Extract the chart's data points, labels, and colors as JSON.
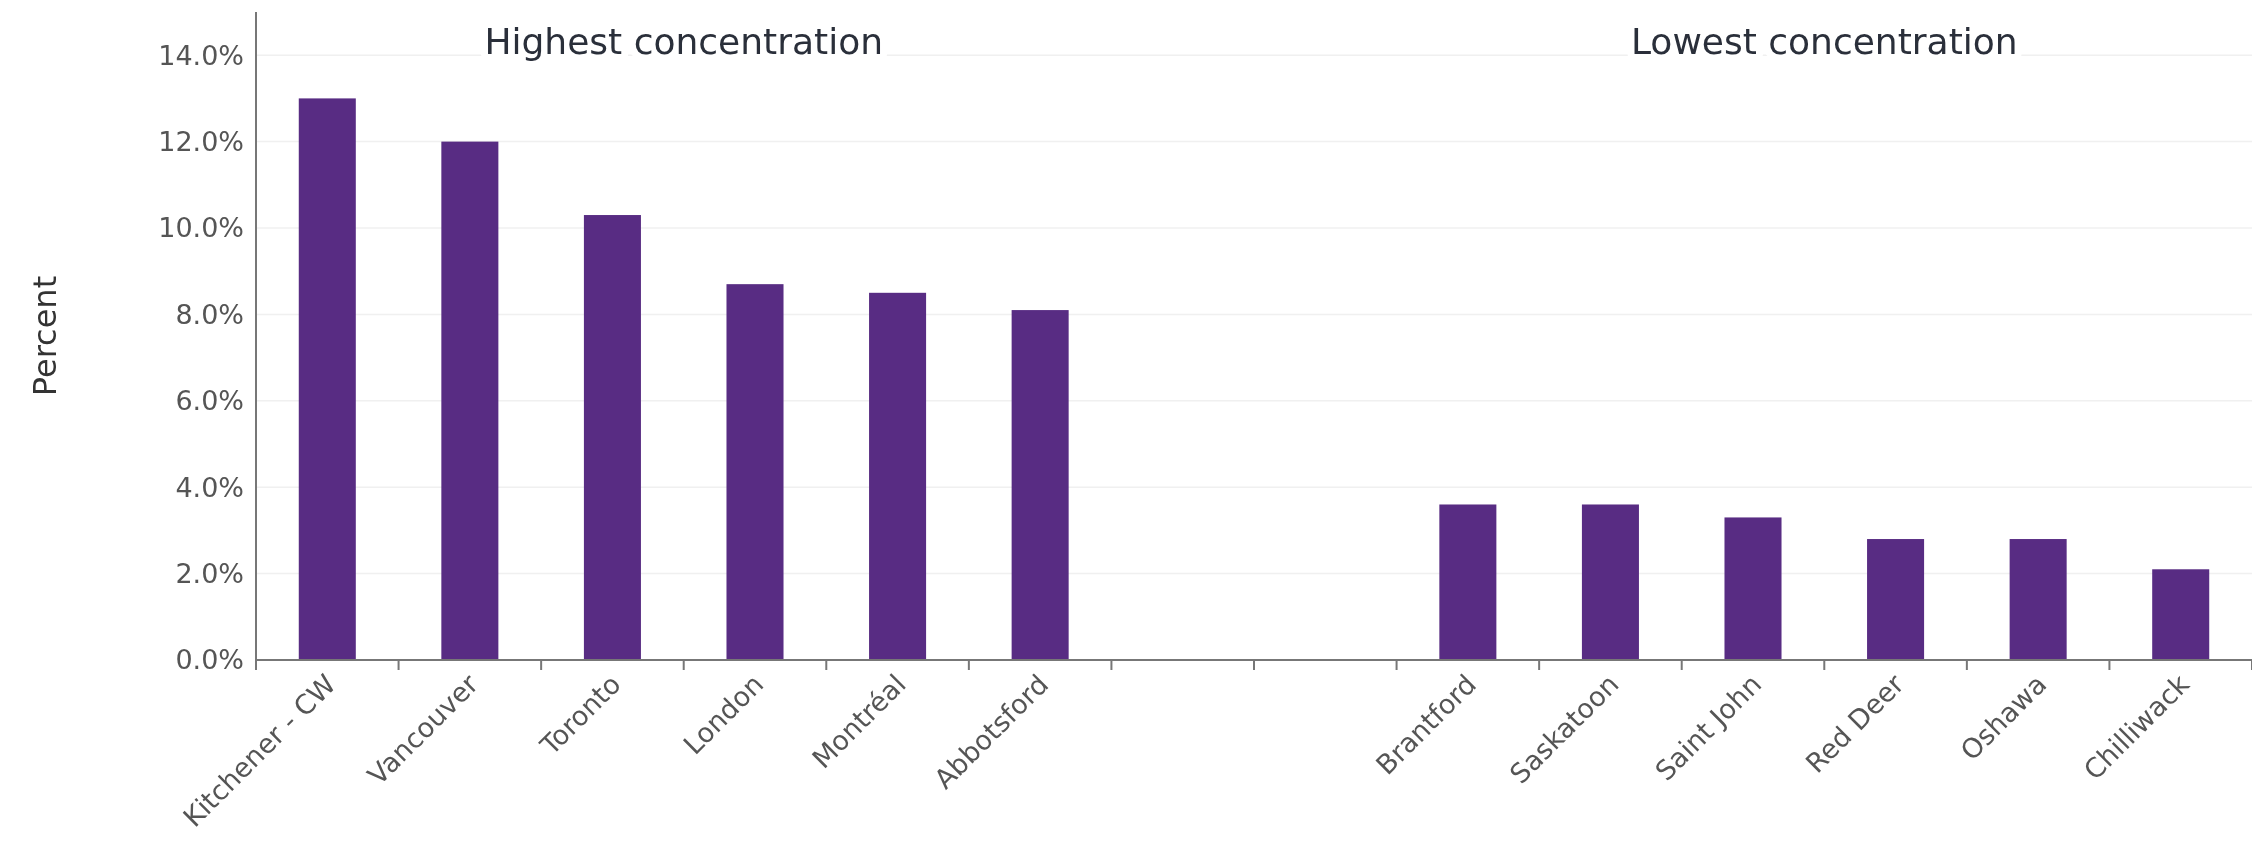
{
  "chart_data": {
    "type": "bar",
    "ylabel": "Percent",
    "categories": [
      "Kitchener - CW",
      "Vancouver",
      "Toronto",
      "London",
      "Montréal",
      "Abbotsford",
      null,
      null,
      "Brantford",
      "Saskatoon",
      "Saint John",
      "Red Deer",
      "Oshawa",
      "Chilliwack"
    ],
    "values": [
      13.0,
      12.0,
      10.3,
      8.7,
      8.5,
      8.1,
      null,
      null,
      3.6,
      3.6,
      3.3,
      2.8,
      2.8,
      2.1
    ],
    "color": "#582c83",
    "ylim": [
      0,
      15
    ],
    "yticks": [
      {
        "value": 0,
        "label": "0.0%"
      },
      {
        "value": 2,
        "label": "2.0%"
      },
      {
        "value": 4,
        "label": "4.0%"
      },
      {
        "value": 6,
        "label": "6.0%"
      },
      {
        "value": 8,
        "label": "8.0%"
      },
      {
        "value": 10,
        "label": "10.0%"
      },
      {
        "value": 12,
        "label": "12.0%"
      },
      {
        "value": 14,
        "label": "14.0%"
      }
    ],
    "grid": "y",
    "annotations": [
      "Highest concentration",
      "Lowest concentration"
    ]
  }
}
